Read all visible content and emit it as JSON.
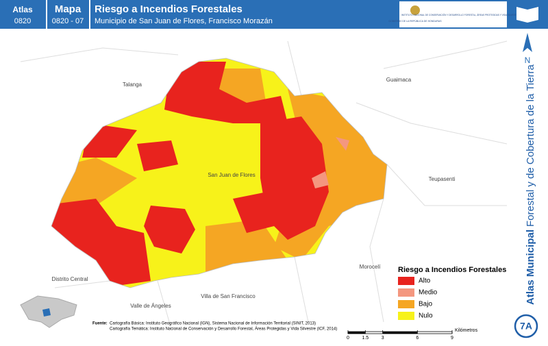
{
  "header": {
    "atlas_label": "Atlas",
    "atlas_code": "0820",
    "map_label": "Mapa",
    "map_code": "0820 - 07",
    "title": "Riesgo a Incendios Forestales",
    "subtitle": "Municipio de San Juan de Flores, Francisco Morazán",
    "logo_left": "GOBIERNO DE LA REPÚBLICA DE HONDURAS",
    "logo_right": "INSTITUTO NACIONAL DE CONSERVACIÓN Y DESARROLLO FORESTAL, ÁREAS PROTEGIDAS Y VIDA SILVESTRE"
  },
  "places": [
    "Talanga",
    "Guaimaca",
    "San Juan de Flores",
    "Teupasenti",
    "Distrito Central",
    "Morocelí",
    "Valle de Ángeles",
    "Villa de San Francisco"
  ],
  "legend": {
    "title": "Riesgo a Incendios Forestales",
    "items": [
      {
        "label": "Alto",
        "color": "#e8231e"
      },
      {
        "label": "Medio",
        "color": "#f4977f"
      },
      {
        "label": "Bajo",
        "color": "#f5a623"
      },
      {
        "label": "Nulo",
        "color": "#f7f21a"
      }
    ]
  },
  "side": {
    "title_bold": "Atlas Municipal",
    "title_rest": "Forestal y de Cobertura de la Tierra",
    "north": "N",
    "sheet": "7A"
  },
  "source": {
    "label": "Fuente:",
    "line1": "Cartografía Básica: Instituto Geográfico Nacional (IGN), Sistema Nacional de Información Territorial (SINIT, 2013)",
    "line2": "Cartografía Temática: Instituto Nacional de Conservación y Desarrollo Forestal, Áreas Protegidas y Vida Silvestre (ICF, 2014)"
  },
  "scale": {
    "ticks": [
      0,
      1.5,
      3,
      6,
      9
    ],
    "unit": "Kilómetros"
  }
}
